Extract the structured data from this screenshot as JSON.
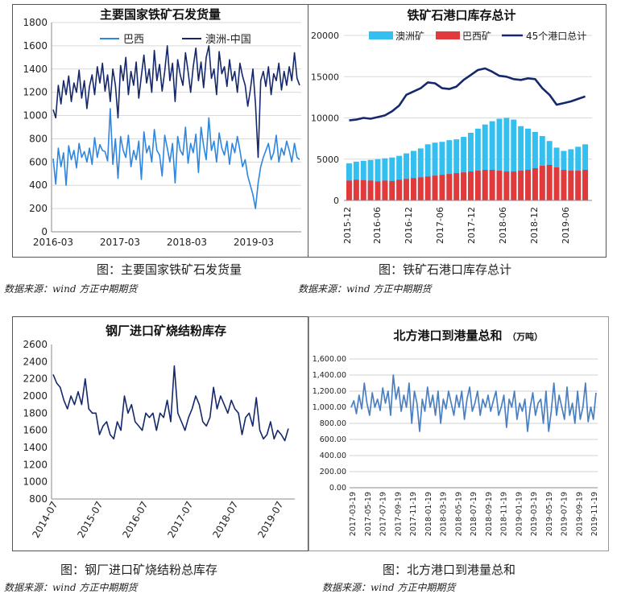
{
  "captions": [
    "图：主要国家铁矿石发货量",
    "图：铁矿石港口库存总计",
    "图：钢厂进口矿烧结粉总库存",
    "图：北方港口到港量总和"
  ],
  "sources": [
    "数据来源：wind  方正中期期货",
    "数据来源：wind  方正中期期货",
    "数据来源：wind  方正中期期货",
    "数据来源：wind  方正中期期货"
  ],
  "colors": {
    "brazil": "#2e86de",
    "australia": "#14286b",
    "aus_bar": "#33bff0",
    "bra_bar": "#e23a3a",
    "total_line": "#14286b",
    "sinter": "#14286b",
    "north": "#4a7fc2"
  },
  "chart_data": [
    {
      "type": "line",
      "title": "主要国家铁矿石发货量",
      "x_ticks": [
        "2016-03",
        "2017-03",
        "2018-03",
        "2019-03"
      ],
      "ylim": [
        0,
        1800
      ],
      "y_ticks": [
        "0",
        "200",
        "400",
        "600",
        "800",
        "1000",
        "1200",
        "1400",
        "1600",
        "1800"
      ],
      "grid": true,
      "legend_position": "top",
      "x_start": "2016-03",
      "x_end": "2019-11",
      "series": [
        {
          "name": "巴西",
          "color_key": "brazil",
          "values": [
            630,
            410,
            720,
            560,
            680,
            400,
            740,
            620,
            700,
            550,
            760,
            640,
            690,
            600,
            720,
            580,
            810,
            640,
            750,
            700,
            690,
            610,
            1060,
            580,
            800,
            460,
            820,
            700,
            640,
            830,
            560,
            700,
            620,
            780,
            450,
            860,
            680,
            740,
            600,
            880,
            700,
            660,
            480,
            830,
            720,
            600,
            760,
            420,
            820,
            700,
            660,
            900,
            590,
            760,
            680,
            840,
            510,
            900,
            740,
            620,
            980,
            700,
            780,
            600,
            850,
            720,
            660,
            780,
            580,
            760,
            680,
            820,
            700,
            560,
            620,
            480,
            400,
            320,
            200,
            420,
            560,
            640,
            700,
            760,
            620,
            680,
            830,
            600,
            720,
            660,
            780,
            700,
            600,
            760,
            640,
            620
          ]
        },
        {
          "name": "澳洲-中国",
          "color_key": "australia",
          "values": [
            1050,
            980,
            1260,
            1100,
            1300,
            1180,
            1340,
            1120,
            1280,
            1200,
            1390,
            1150,
            1300,
            1060,
            1250,
            1350,
            1180,
            1420,
            1280,
            1450,
            1210,
            1350,
            1120,
            1400,
            1260,
            980,
            1430,
            1300,
            1500,
            1180,
            1380,
            1260,
            1460,
            1150,
            1340,
            1520,
            1280,
            1400,
            1200,
            1560,
            1300,
            1440,
            1210,
            1380,
            1600,
            1300,
            1450,
            1120,
            1480,
            1350,
            1260,
            1540,
            1380,
            1200,
            1420,
            1580,
            1300,
            1460,
            1240,
            1500,
            1600,
            1320,
            1400,
            1180,
            1550,
            1360,
            1420,
            1250,
            1480,
            1300,
            1380,
            1200,
            1450,
            1340,
            1260,
            1080,
            1220,
            1400,
            1100,
            640,
            1300,
            1380,
            1250,
            1420,
            1180,
            1360,
            1300,
            1450,
            1220,
            1380,
            1260,
            1420,
            1300,
            1540,
            1320,
            1260
          ]
        }
      ]
    },
    {
      "type": "bar",
      "title": "铁矿石港口库存总计",
      "x_ticks": [
        "2015-12",
        "2016-06",
        "2016-12",
        "2017-06",
        "2017-12",
        "2018-06",
        "2018-12",
        "2019-06"
      ],
      "ylim": [
        0,
        20000
      ],
      "y_ticks": [
        "0",
        "5000",
        "10000",
        "15000",
        "20000"
      ],
      "grid": true,
      "legend_position": "top",
      "x_start": "2015-12",
      "x_end": "2019-11",
      "series": [
        {
          "name": "澳洲矿",
          "type": "bar",
          "color_key": "aus_bar",
          "values": [
            4500,
            4700,
            4800,
            4900,
            5000,
            5100,
            5200,
            5400,
            5700,
            6000,
            6300,
            6800,
            7000,
            7100,
            7300,
            7400,
            7700,
            8200,
            8700,
            9200,
            9600,
            9900,
            10000,
            9800,
            9000,
            8700,
            8300,
            7800,
            7200,
            6400,
            6000,
            6200,
            6500,
            6800
          ]
        },
        {
          "name": "巴西矿",
          "type": "bar",
          "color_key": "bra_bar",
          "values": [
            2400,
            2500,
            2450,
            2400,
            2300,
            2400,
            2350,
            2500,
            2600,
            2700,
            2800,
            2900,
            3000,
            3100,
            3200,
            3300,
            3400,
            3500,
            3600,
            3700,
            3700,
            3600,
            3500,
            3500,
            3600,
            3700,
            3900,
            4200,
            4300,
            4000,
            3700,
            3600,
            3600,
            3700
          ]
        },
        {
          "name": "45个港口总计",
          "type": "line",
          "color_key": "total_line",
          "values": [
            9700,
            9800,
            10000,
            9900,
            10100,
            10300,
            10800,
            11500,
            12800,
            13200,
            13600,
            14300,
            14200,
            13600,
            13500,
            13800,
            14600,
            15200,
            15800,
            16000,
            15600,
            15100,
            15000,
            14700,
            14600,
            14800,
            14700,
            13600,
            12800,
            11600,
            11800,
            12000,
            12300,
            12600
          ]
        }
      ]
    },
    {
      "type": "line",
      "title": "钢厂进口矿烧结粉库存",
      "x_ticks": [
        "2014-07",
        "2015-07",
        "2016-07",
        "2017-07",
        "2018-07",
        "2019-07"
      ],
      "ylim": [
        800,
        2600
      ],
      "y_ticks": [
        "800",
        "1000",
        "1200",
        "1400",
        "1600",
        "1800",
        "2000",
        "2200",
        "2400",
        "2600"
      ],
      "grid": false,
      "x_start": "2014-07",
      "x_end": "2019-11",
      "series": [
        {
          "name": "",
          "color_key": "sinter",
          "values": [
            2250,
            2150,
            2100,
            1950,
            1850,
            2000,
            1900,
            2050,
            1900,
            2200,
            1850,
            1800,
            1800,
            1550,
            1650,
            1700,
            1550,
            1500,
            1700,
            1600,
            2000,
            1800,
            1900,
            1700,
            1650,
            1600,
            1800,
            1750,
            1800,
            1600,
            1800,
            1750,
            1950,
            1700,
            2350,
            1800,
            1700,
            1600,
            1750,
            1850,
            2000,
            1900,
            1700,
            1650,
            1750,
            2100,
            1850,
            2000,
            1900,
            1800,
            1950,
            1850,
            1800,
            1550,
            1750,
            1800,
            1650,
            1980,
            1600,
            1500,
            1550,
            1700,
            1500,
            1600,
            1550,
            1480,
            1620
          ]
        }
      ]
    },
    {
      "type": "line",
      "title": "北方港口到港量总和",
      "title_unit": "（万吨）",
      "x_ticks": [
        "2017-03-19",
        "2017-05-19",
        "2017-07-19",
        "2017-09-19",
        "2017-11-19",
        "2018-01-19",
        "2018-03-19",
        "2018-05-19",
        "2018-07-19",
        "2018-09-19",
        "2018-11-19",
        "2019-01-19",
        "2019-03-19",
        "2019-05-19",
        "2019-07-19",
        "2019-09-19",
        "2019-11-19"
      ],
      "ylim": [
        0,
        1600
      ],
      "y_ticks": [
        "0.00",
        "200.00",
        "400.00",
        "600.00",
        "800.00",
        "1,000.00",
        "1,200.00",
        "1,400.00",
        "1,600.00"
      ],
      "grid": true,
      "x_start": "2017-03-19",
      "x_end": "2019-11-19",
      "series": [
        {
          "name": "",
          "color_key": "north",
          "values": [
            1000,
            1080,
            920,
            1150,
            980,
            1300,
            1050,
            900,
            1180,
            1000,
            1100,
            960,
            1240,
            1050,
            1200,
            900,
            1400,
            1100,
            1250,
            950,
            1150,
            1000,
            1300,
            800,
            1200,
            1050,
            700,
            1100,
            950,
            1250,
            1000,
            1150,
            900,
            1200,
            800,
            1100,
            980,
            1200,
            1050,
            900,
            1150,
            1000,
            1200,
            850,
            1100,
            1250,
            950,
            1050,
            1200,
            900,
            1100,
            1000,
            1150,
            950,
            1080,
            1200,
            900,
            1000,
            1150,
            750,
            1100,
            1000,
            1200,
            850,
            1050,
            950,
            1100,
            700,
            1000,
            1180,
            900,
            1050,
            1100,
            800,
            1200,
            700,
            950,
            1300,
            900,
            1150,
            1000,
            850,
            1250,
            900,
            1050,
            800,
            1200,
            850,
            1000,
            1300,
            820,
            1000,
            850,
            1180
          ]
        }
      ]
    }
  ]
}
